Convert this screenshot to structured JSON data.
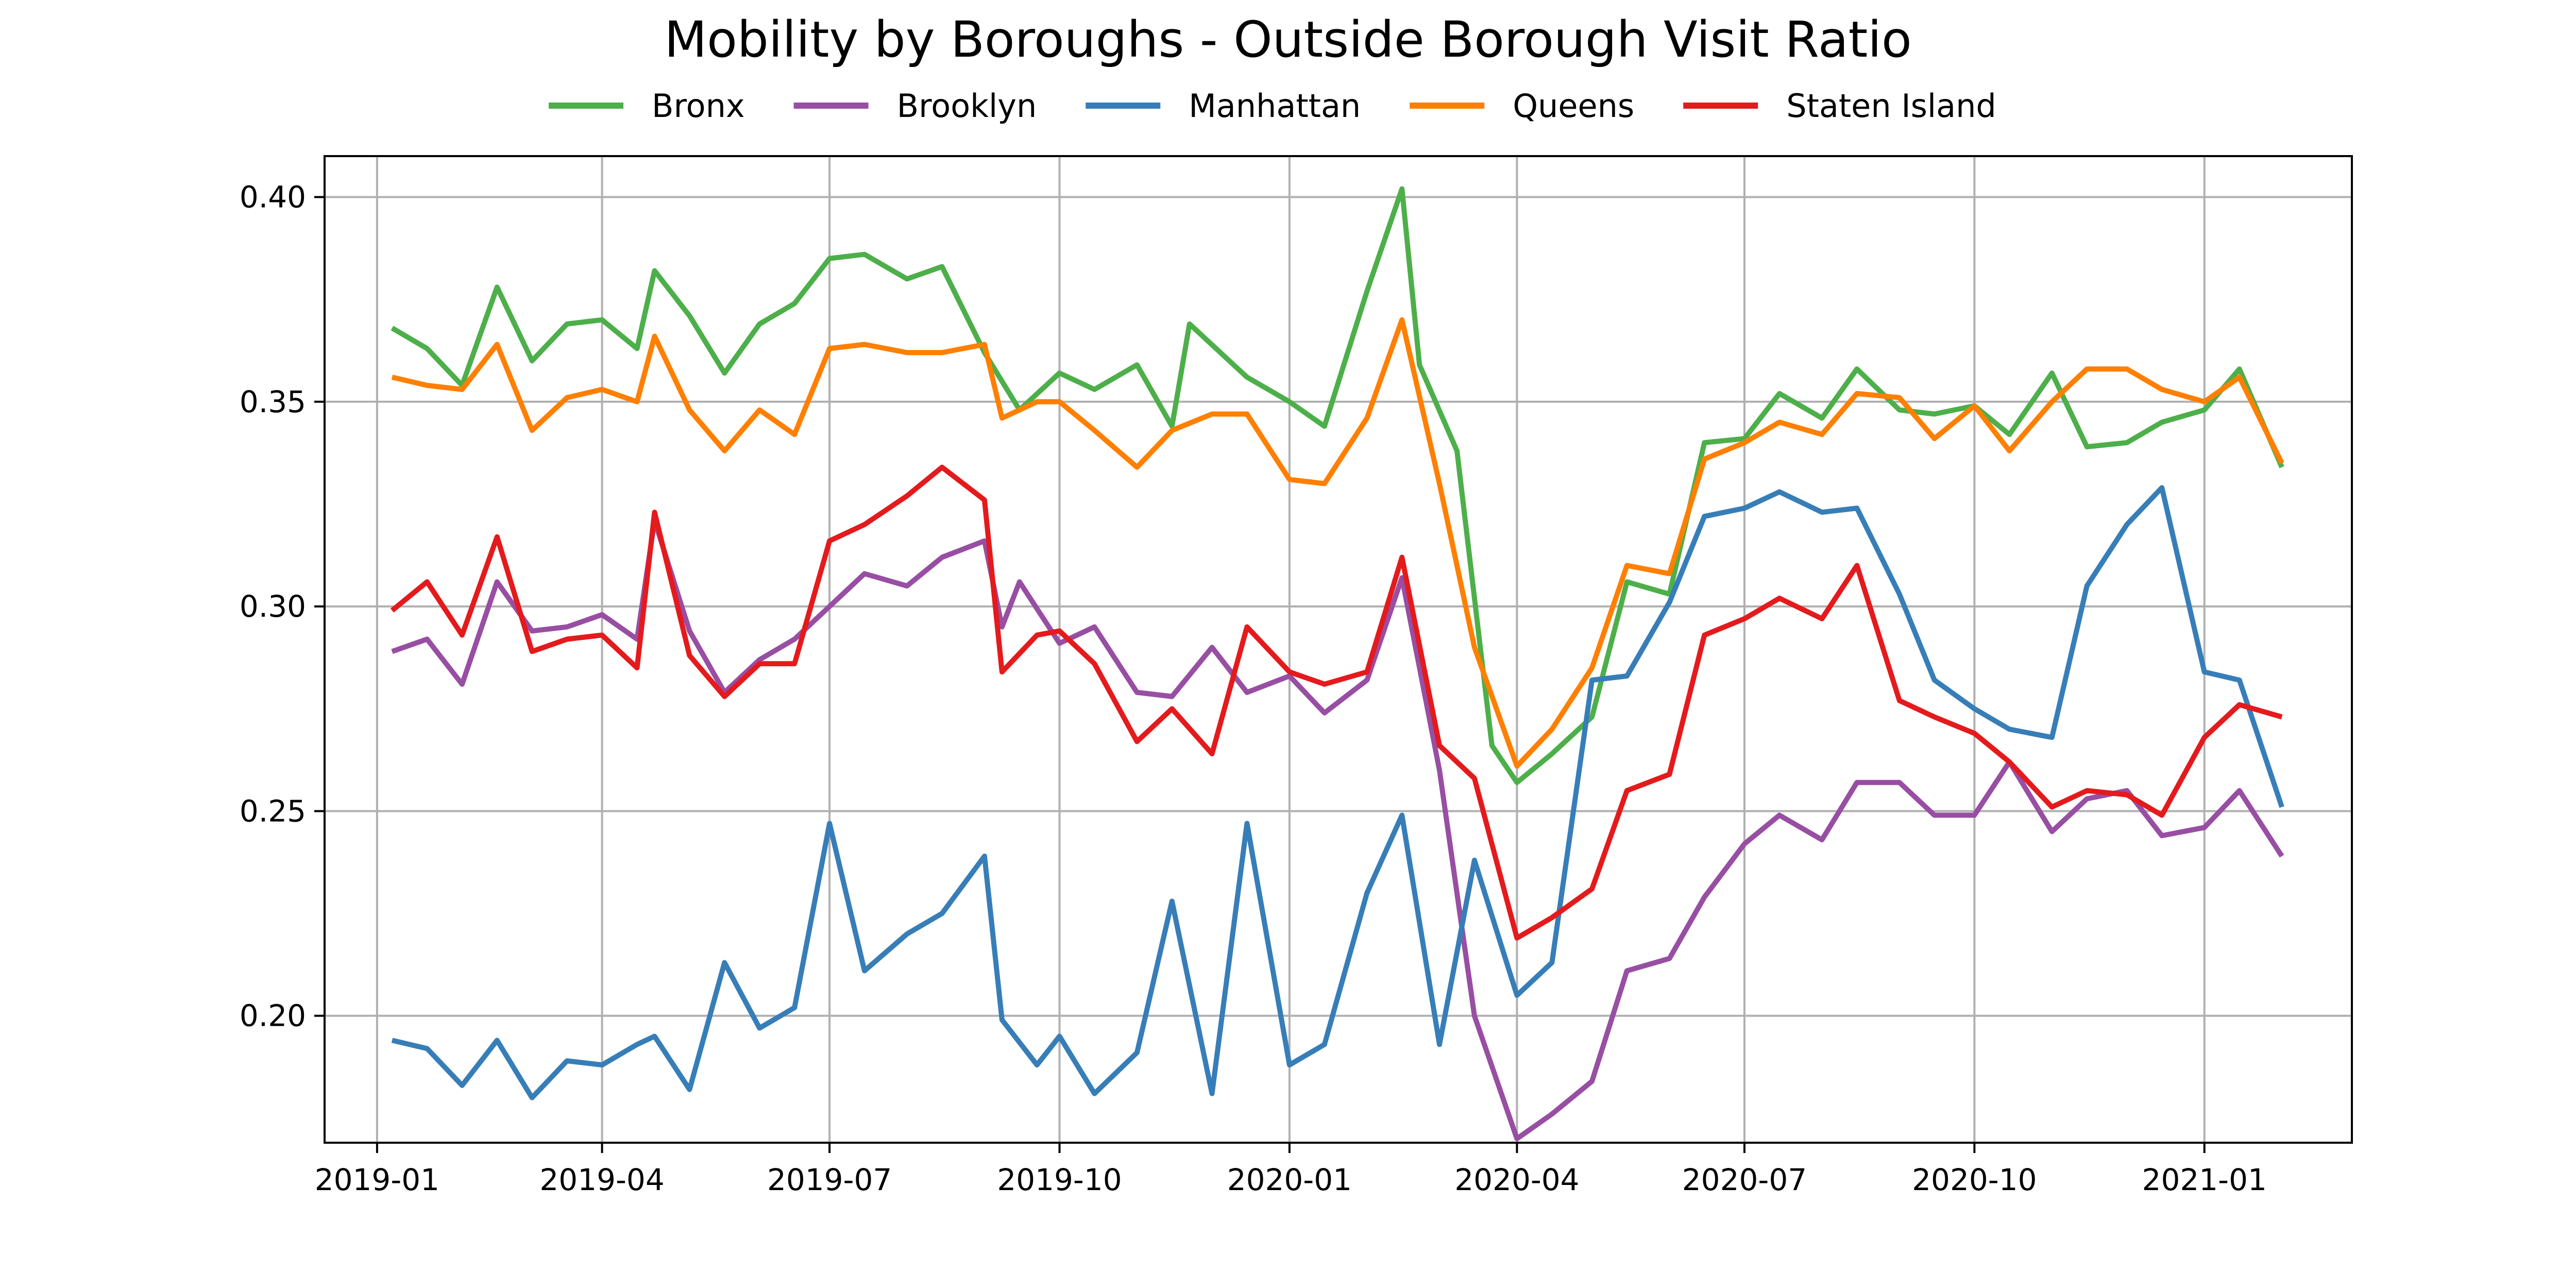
{
  "chart_data": {
    "type": "line",
    "title": "Mobility by Boroughs - Outside Borough Visit Ratio",
    "xlabel": "",
    "ylabel": "",
    "xlim": [
      "2018-12-11",
      "2021-03-01"
    ],
    "ylim": [
      0.169,
      0.41
    ],
    "x_ticks": [
      "2019-01",
      "2019-04",
      "2019-07",
      "2019-10",
      "2020-01",
      "2020-04",
      "2020-07",
      "2020-10",
      "2021-01"
    ],
    "y_ticks": [
      "0.20",
      "0.25",
      "0.30",
      "0.35",
      "0.40"
    ],
    "grid": true,
    "legend_position": "top-center",
    "series": [
      {
        "name": "Bronx",
        "color": "#4daf4a",
        "points": [
          [
            "2019-01-07",
            0.368
          ],
          [
            "2019-01-21",
            0.363
          ],
          [
            "2019-02-04",
            0.354
          ],
          [
            "2019-02-18",
            0.378
          ],
          [
            "2019-03-04",
            0.36
          ],
          [
            "2019-03-18",
            0.369
          ],
          [
            "2019-04-01",
            0.37
          ],
          [
            "2019-04-15",
            0.363
          ],
          [
            "2019-04-22",
            0.382
          ],
          [
            "2019-05-06",
            0.371
          ],
          [
            "2019-05-20",
            0.357
          ],
          [
            "2019-06-03",
            0.369
          ],
          [
            "2019-06-17",
            0.374
          ],
          [
            "2019-07-01",
            0.385
          ],
          [
            "2019-07-15",
            0.386
          ],
          [
            "2019-08-01",
            0.38
          ],
          [
            "2019-08-15",
            0.383
          ],
          [
            "2019-09-01",
            0.362
          ],
          [
            "2019-09-15",
            0.348
          ],
          [
            "2019-10-01",
            0.357
          ],
          [
            "2019-10-15",
            0.353
          ],
          [
            "2019-11-01",
            0.359
          ],
          [
            "2019-11-15",
            0.344
          ],
          [
            "2019-11-22",
            0.369
          ],
          [
            "2019-12-15",
            0.356
          ],
          [
            "2020-01-01",
            0.35
          ],
          [
            "2020-01-15",
            0.344
          ],
          [
            "2020-02-01",
            0.377
          ],
          [
            "2020-02-15",
            0.402
          ],
          [
            "2020-02-22",
            0.359
          ],
          [
            "2020-03-08",
            0.338
          ],
          [
            "2020-03-22",
            0.266
          ],
          [
            "2020-04-01",
            0.257
          ],
          [
            "2020-04-15",
            0.264
          ],
          [
            "2020-05-01",
            0.273
          ],
          [
            "2020-05-15",
            0.306
          ],
          [
            "2020-06-01",
            0.303
          ],
          [
            "2020-06-15",
            0.34
          ],
          [
            "2020-07-01",
            0.341
          ],
          [
            "2020-07-15",
            0.352
          ],
          [
            "2020-08-01",
            0.346
          ],
          [
            "2020-08-15",
            0.358
          ],
          [
            "2020-09-01",
            0.348
          ],
          [
            "2020-09-15",
            0.347
          ],
          [
            "2020-10-01",
            0.349
          ],
          [
            "2020-10-15",
            0.342
          ],
          [
            "2020-11-01",
            0.357
          ],
          [
            "2020-11-15",
            0.339
          ],
          [
            "2020-12-01",
            0.34
          ],
          [
            "2020-12-15",
            0.345
          ],
          [
            "2021-01-01",
            0.348
          ],
          [
            "2021-01-15",
            0.358
          ],
          [
            "2021-02-01",
            0.334
          ]
        ]
      },
      {
        "name": "Brooklyn",
        "color": "#984ea3",
        "points": [
          [
            "2019-01-07",
            0.289
          ],
          [
            "2019-01-21",
            0.292
          ],
          [
            "2019-02-04",
            0.281
          ],
          [
            "2019-02-18",
            0.306
          ],
          [
            "2019-03-04",
            0.294
          ],
          [
            "2019-03-18",
            0.295
          ],
          [
            "2019-04-01",
            0.298
          ],
          [
            "2019-04-15",
            0.292
          ],
          [
            "2019-04-22",
            0.321
          ],
          [
            "2019-05-06",
            0.294
          ],
          [
            "2019-05-20",
            0.279
          ],
          [
            "2019-06-03",
            0.287
          ],
          [
            "2019-06-17",
            0.292
          ],
          [
            "2019-07-01",
            0.3
          ],
          [
            "2019-07-15",
            0.308
          ],
          [
            "2019-08-01",
            0.305
          ],
          [
            "2019-08-15",
            0.312
          ],
          [
            "2019-09-01",
            0.316
          ],
          [
            "2019-09-08",
            0.295
          ],
          [
            "2019-09-15",
            0.306
          ],
          [
            "2019-10-01",
            0.291
          ],
          [
            "2019-10-15",
            0.295
          ],
          [
            "2019-11-01",
            0.279
          ],
          [
            "2019-11-15",
            0.278
          ],
          [
            "2019-12-01",
            0.29
          ],
          [
            "2019-12-15",
            0.279
          ],
          [
            "2020-01-01",
            0.283
          ],
          [
            "2020-01-15",
            0.274
          ],
          [
            "2020-02-01",
            0.282
          ],
          [
            "2020-02-15",
            0.307
          ],
          [
            "2020-03-01",
            0.26
          ],
          [
            "2020-03-15",
            0.2
          ],
          [
            "2020-04-01",
            0.17
          ],
          [
            "2020-04-15",
            0.176
          ],
          [
            "2020-05-01",
            0.184
          ],
          [
            "2020-05-15",
            0.211
          ],
          [
            "2020-06-01",
            0.214
          ],
          [
            "2020-06-15",
            0.229
          ],
          [
            "2020-07-01",
            0.242
          ],
          [
            "2020-07-15",
            0.249
          ],
          [
            "2020-08-01",
            0.243
          ],
          [
            "2020-08-15",
            0.257
          ],
          [
            "2020-09-01",
            0.257
          ],
          [
            "2020-09-15",
            0.249
          ],
          [
            "2020-10-01",
            0.249
          ],
          [
            "2020-10-15",
            0.262
          ],
          [
            "2020-11-01",
            0.245
          ],
          [
            "2020-11-15",
            0.253
          ],
          [
            "2020-12-01",
            0.255
          ],
          [
            "2020-12-15",
            0.244
          ],
          [
            "2021-01-01",
            0.246
          ],
          [
            "2021-01-15",
            0.255
          ],
          [
            "2021-02-01",
            0.239
          ]
        ]
      },
      {
        "name": "Manhattan",
        "color": "#377eb8",
        "points": [
          [
            "2019-01-07",
            0.194
          ],
          [
            "2019-01-21",
            0.192
          ],
          [
            "2019-02-04",
            0.183
          ],
          [
            "2019-02-18",
            0.194
          ],
          [
            "2019-03-04",
            0.18
          ],
          [
            "2019-03-18",
            0.189
          ],
          [
            "2019-04-01",
            0.188
          ],
          [
            "2019-04-15",
            0.193
          ],
          [
            "2019-04-22",
            0.195
          ],
          [
            "2019-05-06",
            0.182
          ],
          [
            "2019-05-20",
            0.213
          ],
          [
            "2019-06-03",
            0.197
          ],
          [
            "2019-06-17",
            0.202
          ],
          [
            "2019-07-01",
            0.247
          ],
          [
            "2019-07-15",
            0.211
          ],
          [
            "2019-08-01",
            0.22
          ],
          [
            "2019-08-15",
            0.225
          ],
          [
            "2019-09-01",
            0.239
          ],
          [
            "2019-09-08",
            0.199
          ],
          [
            "2019-09-22",
            0.188
          ],
          [
            "2019-10-01",
            0.195
          ],
          [
            "2019-10-15",
            0.181
          ],
          [
            "2019-11-01",
            0.191
          ],
          [
            "2019-11-15",
            0.228
          ],
          [
            "2019-12-01",
            0.181
          ],
          [
            "2019-12-15",
            0.247
          ],
          [
            "2020-01-01",
            0.188
          ],
          [
            "2020-01-15",
            0.193
          ],
          [
            "2020-02-01",
            0.23
          ],
          [
            "2020-02-15",
            0.249
          ],
          [
            "2020-03-01",
            0.193
          ],
          [
            "2020-03-15",
            0.238
          ],
          [
            "2020-04-01",
            0.205
          ],
          [
            "2020-04-15",
            0.213
          ],
          [
            "2020-05-01",
            0.282
          ],
          [
            "2020-05-15",
            0.283
          ],
          [
            "2020-06-01",
            0.301
          ],
          [
            "2020-06-15",
            0.322
          ],
          [
            "2020-07-01",
            0.324
          ],
          [
            "2020-07-15",
            0.328
          ],
          [
            "2020-08-01",
            0.323
          ],
          [
            "2020-08-15",
            0.324
          ],
          [
            "2020-09-01",
            0.303
          ],
          [
            "2020-09-15",
            0.282
          ],
          [
            "2020-10-01",
            0.275
          ],
          [
            "2020-10-15",
            0.27
          ],
          [
            "2020-11-01",
            0.268
          ],
          [
            "2020-11-15",
            0.305
          ],
          [
            "2020-12-01",
            0.32
          ],
          [
            "2020-12-15",
            0.329
          ],
          [
            "2021-01-01",
            0.284
          ],
          [
            "2021-01-15",
            0.282
          ],
          [
            "2021-02-01",
            0.251
          ]
        ]
      },
      {
        "name": "Queens",
        "color": "#ff7f00",
        "points": [
          [
            "2019-01-07",
            0.356
          ],
          [
            "2019-01-21",
            0.354
          ],
          [
            "2019-02-04",
            0.353
          ],
          [
            "2019-02-18",
            0.364
          ],
          [
            "2019-03-04",
            0.343
          ],
          [
            "2019-03-18",
            0.351
          ],
          [
            "2019-04-01",
            0.353
          ],
          [
            "2019-04-15",
            0.35
          ],
          [
            "2019-04-22",
            0.366
          ],
          [
            "2019-05-06",
            0.348
          ],
          [
            "2019-05-20",
            0.338
          ],
          [
            "2019-06-03",
            0.348
          ],
          [
            "2019-06-17",
            0.342
          ],
          [
            "2019-07-01",
            0.363
          ],
          [
            "2019-07-15",
            0.364
          ],
          [
            "2019-08-01",
            0.362
          ],
          [
            "2019-08-15",
            0.362
          ],
          [
            "2019-09-01",
            0.364
          ],
          [
            "2019-09-08",
            0.346
          ],
          [
            "2019-09-22",
            0.35
          ],
          [
            "2019-10-01",
            0.35
          ],
          [
            "2019-10-15",
            0.343
          ],
          [
            "2019-11-01",
            0.334
          ],
          [
            "2019-11-15",
            0.343
          ],
          [
            "2019-12-01",
            0.347
          ],
          [
            "2019-12-15",
            0.347
          ],
          [
            "2020-01-01",
            0.331
          ],
          [
            "2020-01-15",
            0.33
          ],
          [
            "2020-02-01",
            0.346
          ],
          [
            "2020-02-15",
            0.37
          ],
          [
            "2020-03-01",
            0.33
          ],
          [
            "2020-03-15",
            0.29
          ],
          [
            "2020-04-01",
            0.261
          ],
          [
            "2020-04-15",
            0.27
          ],
          [
            "2020-05-01",
            0.285
          ],
          [
            "2020-05-15",
            0.31
          ],
          [
            "2020-06-01",
            0.308
          ],
          [
            "2020-06-15",
            0.336
          ],
          [
            "2020-07-01",
            0.34
          ],
          [
            "2020-07-15",
            0.345
          ],
          [
            "2020-08-01",
            0.342
          ],
          [
            "2020-08-15",
            0.352
          ],
          [
            "2020-09-01",
            0.351
          ],
          [
            "2020-09-15",
            0.341
          ],
          [
            "2020-10-01",
            0.349
          ],
          [
            "2020-10-15",
            0.338
          ],
          [
            "2020-11-01",
            0.35
          ],
          [
            "2020-11-15",
            0.358
          ],
          [
            "2020-12-01",
            0.358
          ],
          [
            "2020-12-15",
            0.353
          ],
          [
            "2021-01-01",
            0.35
          ],
          [
            "2021-01-15",
            0.356
          ],
          [
            "2021-02-01",
            0.335
          ]
        ]
      },
      {
        "name": "Staten Island",
        "color": "#e41a1c",
        "points": [
          [
            "2019-01-07",
            0.299
          ],
          [
            "2019-01-21",
            0.306
          ],
          [
            "2019-02-04",
            0.293
          ],
          [
            "2019-02-18",
            0.317
          ],
          [
            "2019-03-04",
            0.289
          ],
          [
            "2019-03-18",
            0.292
          ],
          [
            "2019-04-01",
            0.293
          ],
          [
            "2019-04-15",
            0.285
          ],
          [
            "2019-04-22",
            0.323
          ],
          [
            "2019-05-06",
            0.288
          ],
          [
            "2019-05-20",
            0.278
          ],
          [
            "2019-06-03",
            0.286
          ],
          [
            "2019-06-17",
            0.286
          ],
          [
            "2019-07-01",
            0.316
          ],
          [
            "2019-07-15",
            0.32
          ],
          [
            "2019-08-01",
            0.327
          ],
          [
            "2019-08-15",
            0.334
          ],
          [
            "2019-09-01",
            0.326
          ],
          [
            "2019-09-08",
            0.284
          ],
          [
            "2019-09-22",
            0.293
          ],
          [
            "2019-10-01",
            0.294
          ],
          [
            "2019-10-15",
            0.286
          ],
          [
            "2019-11-01",
            0.267
          ],
          [
            "2019-11-15",
            0.275
          ],
          [
            "2019-12-01",
            0.264
          ],
          [
            "2019-12-15",
            0.295
          ],
          [
            "2020-01-01",
            0.284
          ],
          [
            "2020-01-15",
            0.281
          ],
          [
            "2020-02-01",
            0.284
          ],
          [
            "2020-02-15",
            0.312
          ],
          [
            "2020-03-01",
            0.266
          ],
          [
            "2020-03-15",
            0.258
          ],
          [
            "2020-04-01",
            0.219
          ],
          [
            "2020-04-15",
            0.224
          ],
          [
            "2020-05-01",
            0.231
          ],
          [
            "2020-05-15",
            0.255
          ],
          [
            "2020-06-01",
            0.259
          ],
          [
            "2020-06-15",
            0.293
          ],
          [
            "2020-07-01",
            0.297
          ],
          [
            "2020-07-15",
            0.302
          ],
          [
            "2020-08-01",
            0.297
          ],
          [
            "2020-08-15",
            0.31
          ],
          [
            "2020-09-01",
            0.277
          ],
          [
            "2020-09-15",
            0.273
          ],
          [
            "2020-10-01",
            0.269
          ],
          [
            "2020-10-15",
            0.262
          ],
          [
            "2020-11-01",
            0.251
          ],
          [
            "2020-11-15",
            0.255
          ],
          [
            "2020-12-01",
            0.254
          ],
          [
            "2020-12-15",
            0.249
          ],
          [
            "2021-01-01",
            0.268
          ],
          [
            "2021-01-15",
            0.276
          ],
          [
            "2021-02-01",
            0.273
          ]
        ]
      }
    ]
  }
}
